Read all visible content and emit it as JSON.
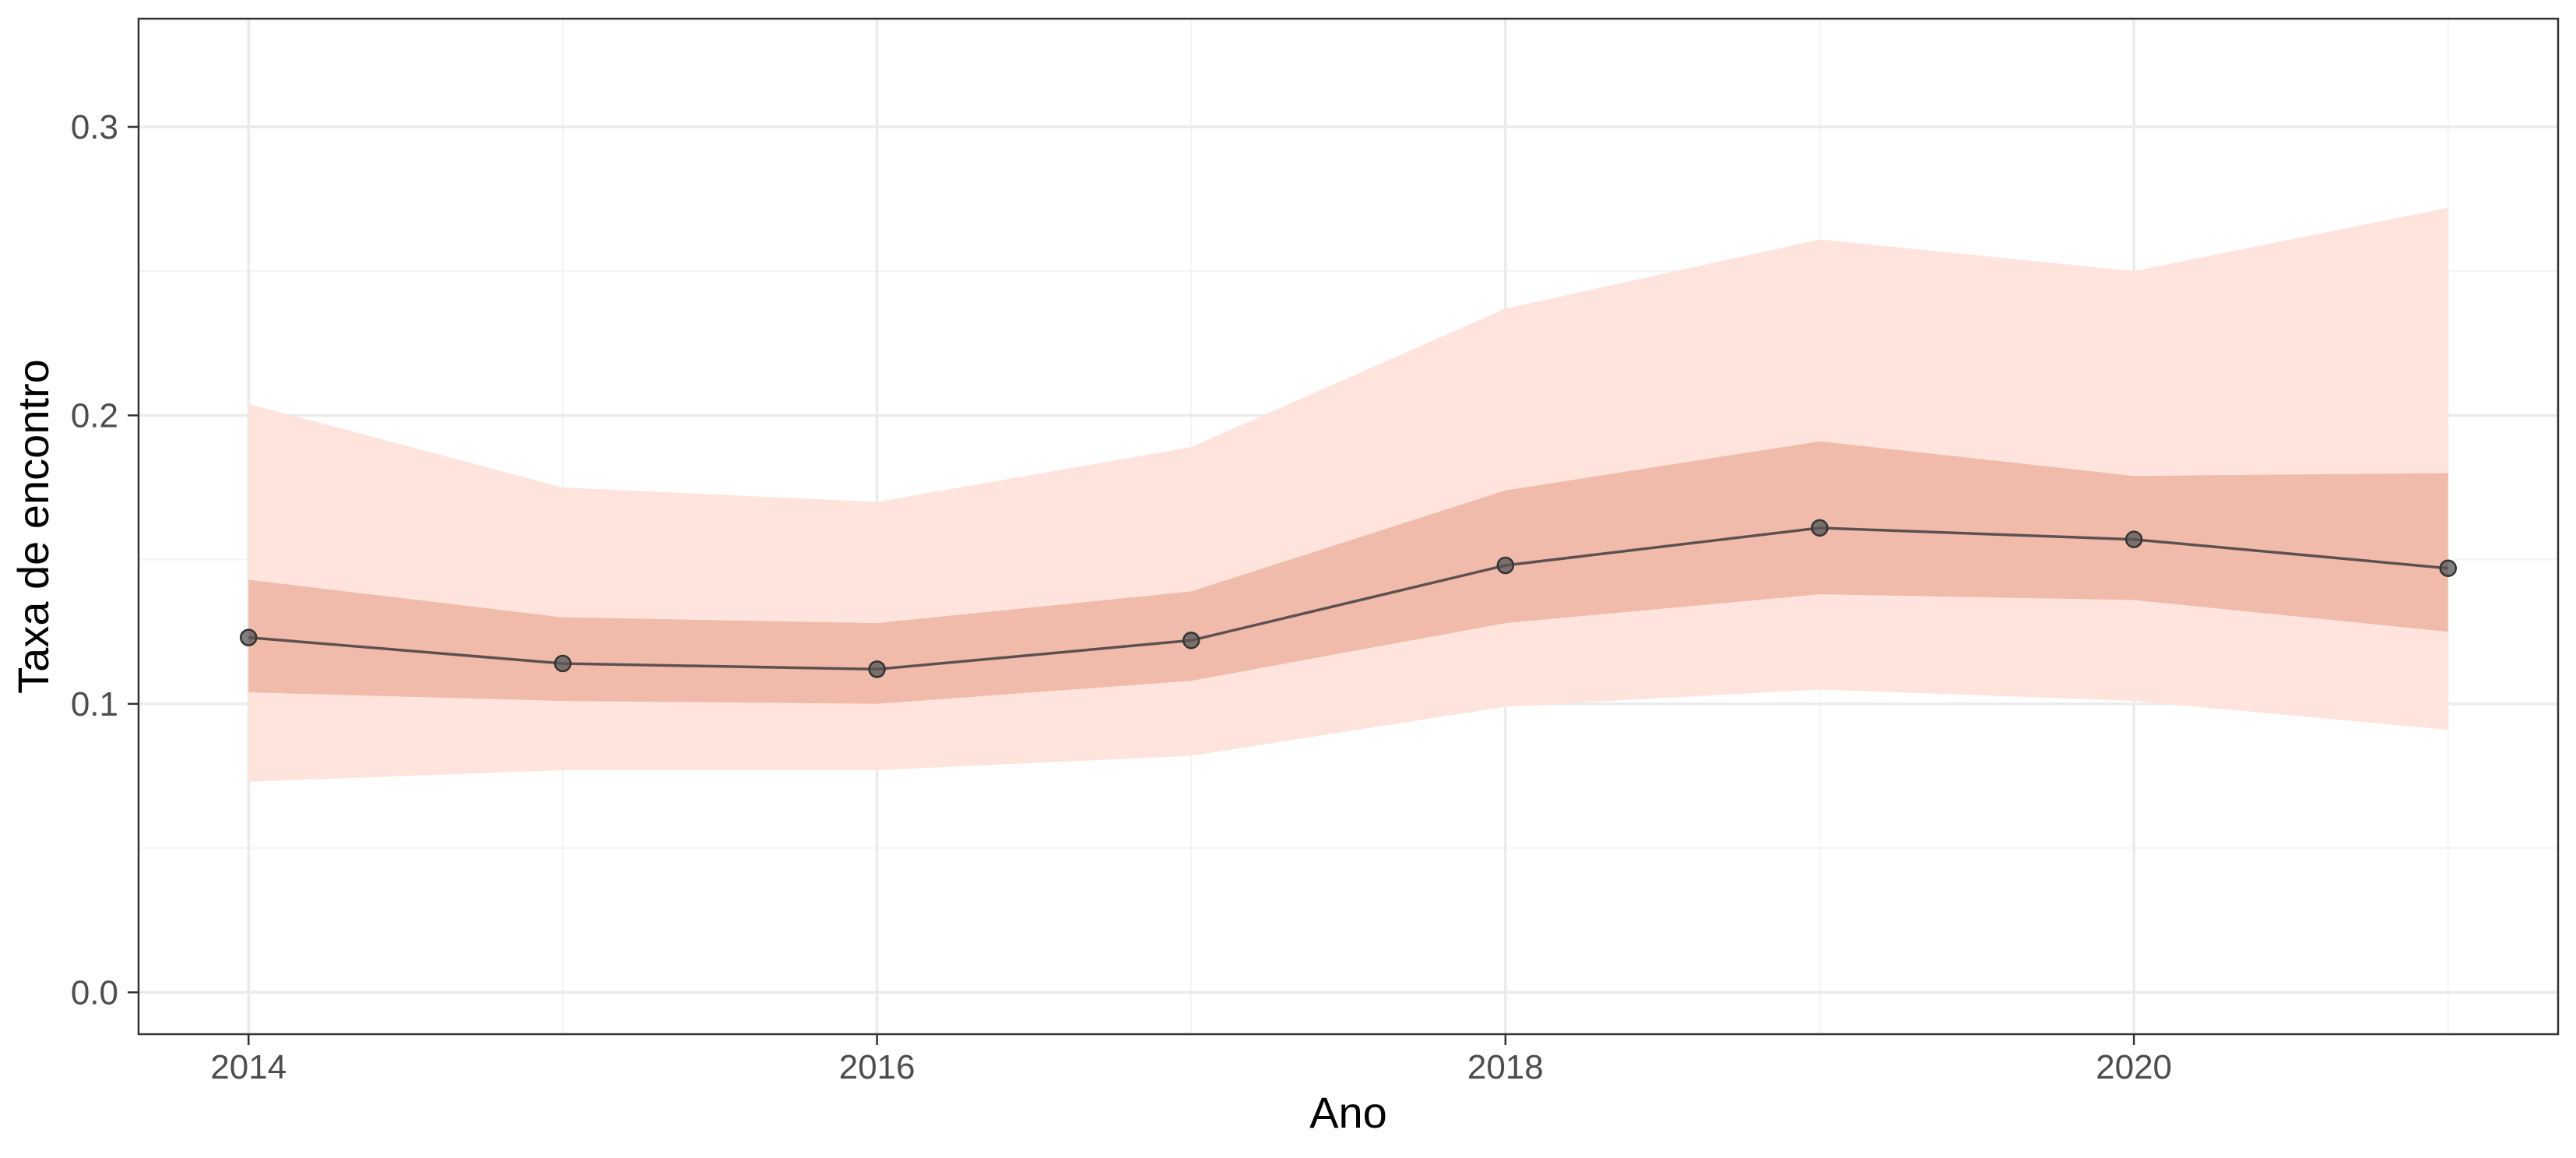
{
  "chart_data": {
    "type": "line",
    "title": "",
    "xlabel": "Ano",
    "ylabel": "Taxa de encontro",
    "xlim": [
      2013.65,
      2021.35
    ],
    "ylim": [
      -0.0145,
      0.3375
    ],
    "x_ticks": [
      2014,
      2016,
      2018,
      2020
    ],
    "x_tick_labels": [
      "2014",
      "2016",
      "2018",
      "2020"
    ],
    "y_ticks": [
      0.0,
      0.1,
      0.2,
      0.3
    ],
    "y_tick_labels": [
      "0.0",
      "0.1",
      "0.2",
      "0.3"
    ],
    "grid": true,
    "legend": "none",
    "series": [
      {
        "x": [
          2014,
          2015,
          2016,
          2017,
          2018,
          2019,
          2020,
          2021
        ],
        "y": [
          0.123,
          0.114,
          0.112,
          0.122,
          0.148,
          0.161,
          0.157,
          0.147
        ],
        "inner_band_lower": [
          0.104,
          0.101,
          0.1,
          0.108,
          0.128,
          0.138,
          0.136,
          0.125
        ],
        "inner_band_upper": [
          0.143,
          0.13,
          0.128,
          0.139,
          0.174,
          0.191,
          0.179,
          0.18
        ],
        "outer_band_lower": [
          0.073,
          0.077,
          0.077,
          0.082,
          0.099,
          0.105,
          0.101,
          0.091
        ],
        "outer_band_upper": [
          0.204,
          0.175,
          0.17,
          0.189,
          0.237,
          0.261,
          0.25,
          0.272
        ]
      }
    ],
    "colors": {
      "line": "#5e5050",
      "point": "#555555",
      "inner_band": "#f0bbab",
      "outer_band": "#fee4dc",
      "grid_major": "#ebebeb",
      "grid_minor": "#f4f4f4",
      "panel_border": "#333333"
    }
  }
}
